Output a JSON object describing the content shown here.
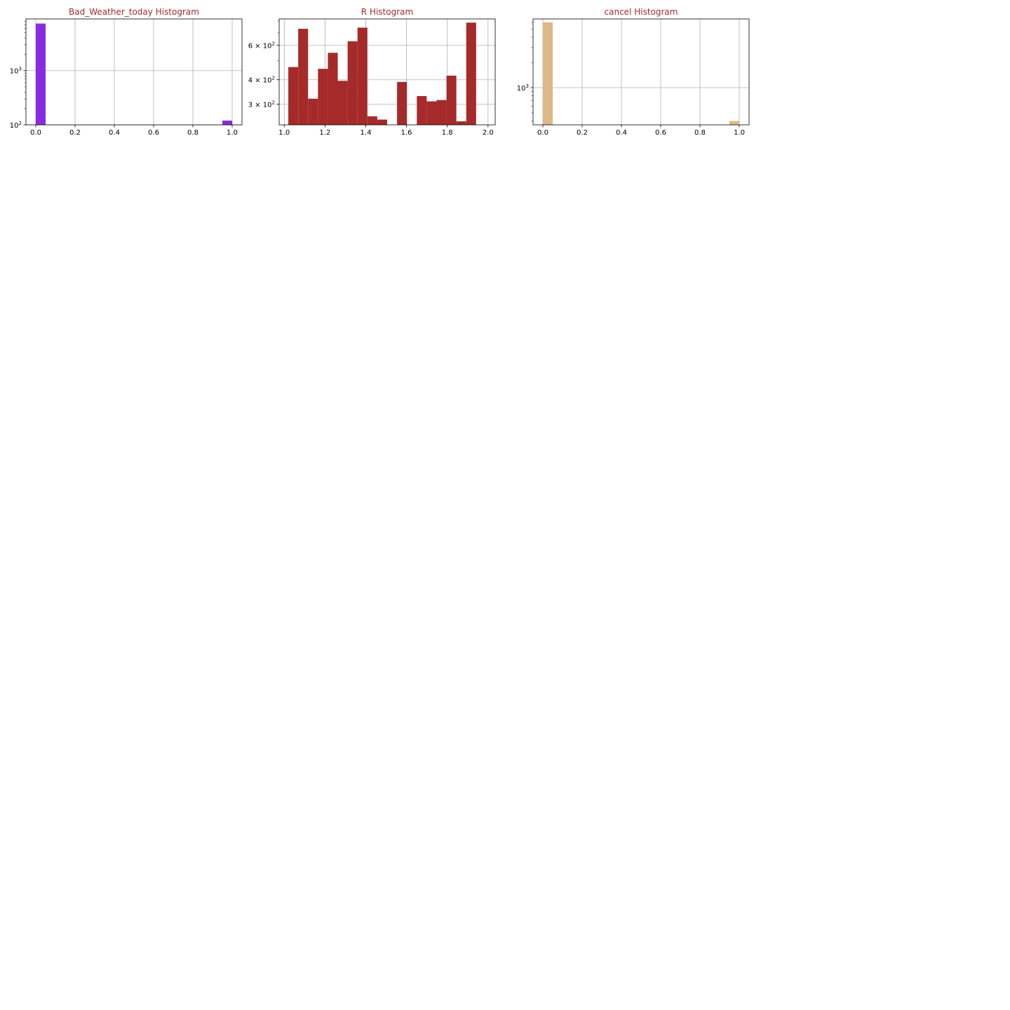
{
  "chart_data": [
    {
      "type": "bar",
      "title": "Bad_Weather_today Histogram",
      "xlabel": "",
      "ylabel": "",
      "y_scale": "log",
      "bar_color": "#8a2be2",
      "title_color": "#a52a2a",
      "bins": 20,
      "bin_range": [
        0.0,
        1.0
      ],
      "xlim": [
        -0.05,
        1.05
      ],
      "ylim": [
        100,
        9000
      ],
      "x_ticks": [
        "0.0",
        "0.2",
        "0.4",
        "0.6",
        "0.8",
        "1.0"
      ],
      "x_tick_values": [
        0.0,
        0.2,
        0.4,
        0.6,
        0.8,
        1.0
      ],
      "y_ticks": [
        {
          "value": 100,
          "base": "10",
          "exp": "2"
        },
        {
          "value": 1000,
          "base": "10",
          "exp": "3"
        }
      ],
      "grid": true,
      "counts": [
        7400,
        0,
        0,
        0,
        0,
        0,
        0,
        0,
        0,
        0,
        0,
        0,
        0,
        0,
        0,
        0,
        0,
        0,
        0,
        120
      ]
    },
    {
      "type": "bar",
      "title": "R Histogram",
      "xlabel": "",
      "ylabel": "",
      "y_scale": "log",
      "bar_color": "#a52a2a",
      "title_color": "#a52a2a",
      "bins": 20,
      "bin_range": [
        1.02,
        1.99
      ],
      "xlim": [
        0.975,
        2.035
      ],
      "ylim": [
        235,
        820
      ],
      "x_ticks": [
        "1.0",
        "1.2",
        "1.4",
        "1.6",
        "1.8",
        "2.0"
      ],
      "x_tick_values": [
        1.0,
        1.2,
        1.4,
        1.6,
        1.8,
        2.0
      ],
      "y_ticks": [
        {
          "value": 300,
          "base": "3 × 10",
          "exp": "2"
        },
        {
          "value": 400,
          "base": "4 × 10",
          "exp": "2"
        },
        {
          "value": 600,
          "base": "6 × 10",
          "exp": "2"
        }
      ],
      "grid": true,
      "counts": [
        465,
        730,
        320,
        455,
        550,
        395,
        630,
        740,
        260,
        250,
        0,
        390,
        0,
        330,
        310,
        315,
        420,
        245,
        785,
        0
      ],
      "counts_note": ""
    },
    {
      "type": "bar",
      "title": "cancel Histogram",
      "xlabel": "",
      "ylabel": "",
      "y_scale": "log",
      "bar_color": "#deb887",
      "title_color": "#a52a2a",
      "bins": 20,
      "bin_range": [
        0.0,
        1.0
      ],
      "xlim": [
        -0.05,
        1.05
      ],
      "ylim": [
        360,
        6600
      ],
      "x_ticks": [
        "0.0",
        "0.2",
        "0.4",
        "0.6",
        "0.8",
        "1.0"
      ],
      "x_tick_values": [
        0.0,
        0.2,
        0.4,
        0.6,
        0.8,
        1.0
      ],
      "y_ticks": [
        {
          "value": 1000,
          "base": "10",
          "exp": "3"
        }
      ],
      "grid": true,
      "counts": [
        6000,
        0,
        0,
        0,
        0,
        0,
        0,
        0,
        0,
        0,
        0,
        0,
        0,
        0,
        0,
        0,
        0,
        0,
        0,
        400
      ]
    }
  ]
}
